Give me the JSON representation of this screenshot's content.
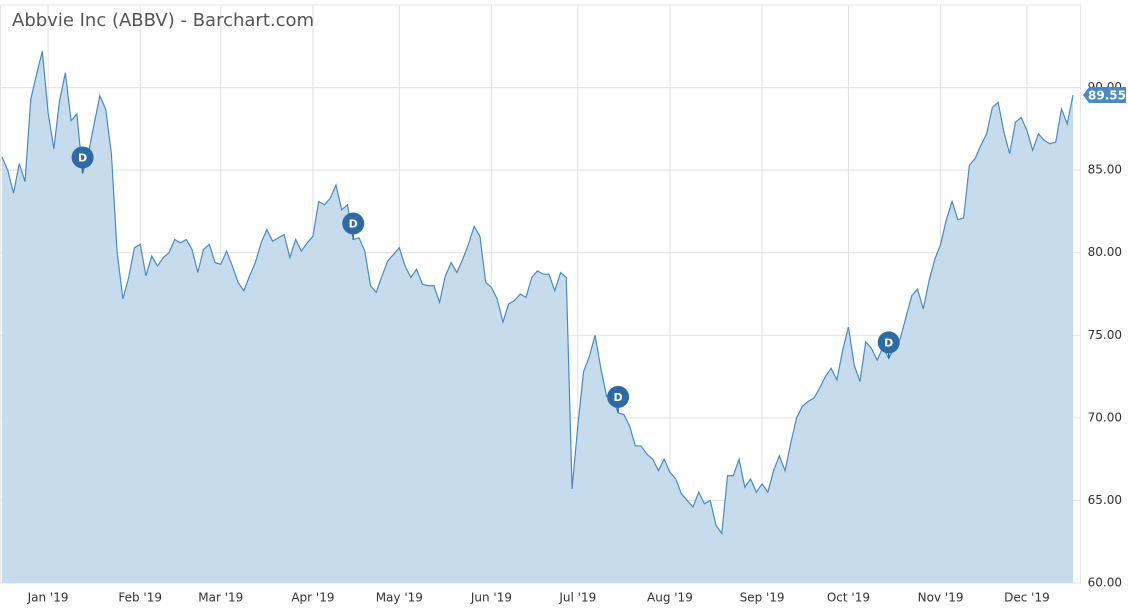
{
  "chart_data": {
    "type": "area",
    "title": "Abbvie Inc (ABBV) - Barchart.com",
    "categories": [
      null,
      null,
      null,
      null,
      null,
      null,
      null,
      null,
      "Jan '19",
      null,
      null,
      null,
      null,
      null,
      null,
      null,
      null,
      null,
      null,
      null,
      null,
      null,
      null,
      null,
      "Feb '19",
      null,
      null,
      null,
      null,
      null,
      null,
      null,
      null,
      null,
      null,
      null,
      null,
      null,
      "Mar '19",
      null,
      null,
      null,
      null,
      null,
      null,
      null,
      null,
      null,
      null,
      null,
      null,
      null,
      null,
      null,
      "Apr '19",
      null,
      null,
      null,
      null,
      null,
      null,
      null,
      null,
      null,
      null,
      null,
      null,
      null,
      null,
      "May '19",
      null,
      null,
      null,
      null,
      null,
      null,
      null,
      null,
      null,
      null,
      null,
      null,
      null,
      null,
      null,
      "Jun '19",
      null,
      null,
      null,
      null,
      null,
      null,
      null,
      null,
      null,
      null,
      null,
      null,
      null,
      null,
      "Jul '19",
      null,
      null,
      null,
      null,
      null,
      null,
      null,
      null,
      null,
      null,
      null,
      null,
      null,
      null,
      null,
      "Aug '19",
      null,
      null,
      null,
      null,
      null,
      null,
      null,
      null,
      null,
      null,
      null,
      null,
      null,
      null,
      null,
      "Sep '19",
      null,
      null,
      null,
      null,
      null,
      null,
      null,
      null,
      null,
      null,
      null,
      null,
      null,
      null,
      "Oct '19",
      null,
      null,
      null,
      null,
      null,
      null,
      null,
      null,
      null,
      null,
      null,
      null,
      null,
      null,
      null,
      "Nov '19",
      null,
      null,
      null,
      null,
      null,
      null,
      null,
      null,
      null,
      null,
      null,
      null,
      null,
      null,
      "Dec '19",
      null,
      null,
      null,
      null,
      null,
      null,
      null,
      null
    ],
    "series": [
      {
        "name": "ABBV",
        "color": "#4a8ac0",
        "fill": "#c6dcec",
        "values": [
          85.8,
          85.0,
          83.6,
          85.4,
          84.3,
          89.3,
          90.8,
          92.2,
          88.5,
          86.3,
          89.2,
          90.9,
          88.0,
          88.4,
          84.8,
          86.0,
          87.8,
          89.5,
          88.7,
          86.0,
          80.0,
          77.2,
          78.5,
          80.3,
          80.5,
          78.6,
          79.8,
          79.2,
          79.7,
          80.0,
          80.8,
          80.6,
          80.8,
          80.2,
          78.8,
          80.2,
          80.5,
          79.4,
          79.3,
          80.1,
          79.2,
          78.2,
          77.7,
          78.6,
          79.4,
          80.6,
          81.4,
          80.7,
          80.9,
          81.1,
          79.7,
          80.8,
          80.1,
          80.6,
          81.0,
          83.1,
          82.9,
          83.3,
          84.1,
          82.6,
          82.9,
          80.8,
          80.9,
          80.1,
          78.0,
          77.6,
          78.6,
          79.5,
          79.9,
          80.3,
          79.2,
          78.5,
          79.0,
          78.1,
          78.0,
          78.0,
          77.0,
          78.6,
          79.4,
          78.8,
          79.6,
          80.5,
          81.6,
          81.0,
          78.2,
          77.9,
          77.2,
          75.8,
          76.9,
          77.1,
          77.5,
          77.3,
          78.5,
          78.9,
          78.7,
          78.7,
          77.7,
          78.8,
          78.5,
          65.7,
          69.5,
          72.8,
          73.7,
          75.0,
          73.0,
          71.3,
          71.3,
          70.3,
          70.2,
          69.5,
          68.3,
          68.3,
          67.8,
          67.5,
          66.8,
          67.5,
          66.7,
          66.3,
          65.4,
          65.0,
          64.6,
          65.5,
          64.8,
          65.0,
          63.5,
          63.0,
          66.5,
          66.5,
          67.5,
          65.8,
          66.3,
          65.5,
          66.0,
          65.5,
          66.8,
          67.7,
          66.8,
          68.5,
          70.0,
          70.7,
          71.0,
          71.2,
          71.8,
          72.5,
          73.0,
          72.3,
          74.1,
          75.5,
          73.2,
          72.2,
          74.6,
          74.2,
          73.5,
          74.3,
          73.6,
          74.3,
          74.8,
          76.1,
          77.4,
          77.8,
          76.6,
          78.3,
          79.6,
          80.5,
          82.0,
          83.1,
          82.0,
          82.1,
          85.3,
          85.7,
          86.5,
          87.2,
          88.8,
          89.1,
          87.3,
          86.0,
          87.9,
          88.2,
          87.4,
          86.2,
          87.2,
          86.8,
          86.6,
          86.7,
          88.7,
          87.8,
          89.55
        ]
      }
    ],
    "annotations": [
      {
        "text": "D",
        "category": 14
      },
      {
        "text": "D",
        "category": 61
      },
      {
        "text": "D",
        "category": 107
      },
      {
        "text": "D",
        "category": 154
      }
    ],
    "ylim": [
      60,
      95
    ],
    "yticks": [
      {
        "value": 60,
        "label": "60.00"
      },
      {
        "value": 65,
        "label": "65.00"
      },
      {
        "value": 70,
        "label": "70.00"
      },
      {
        "value": 75,
        "label": "75.00"
      },
      {
        "value": 80,
        "label": "80.00"
      },
      {
        "value": 85,
        "label": "85.00"
      },
      {
        "value": 90,
        "label": "90.00"
      }
    ],
    "grid": true
  }
}
